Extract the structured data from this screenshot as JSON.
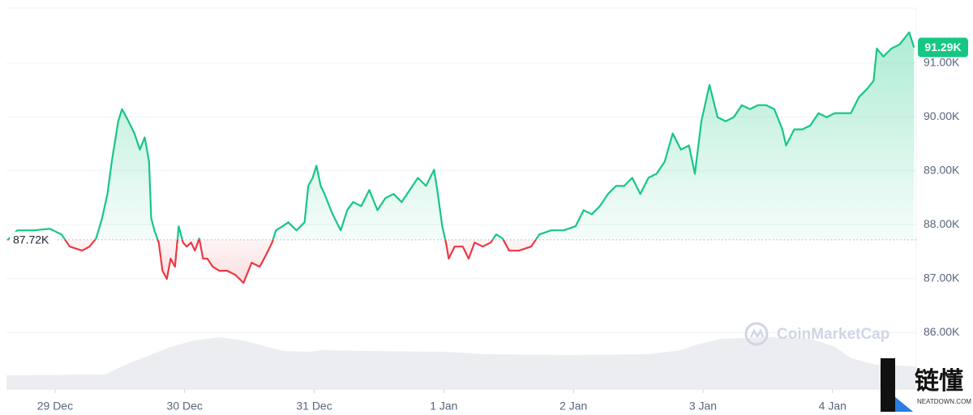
{
  "chart_data": {
    "type": "line",
    "x": [
      -8.8,
      -7.0,
      -4.0,
      -1.0,
      1.2,
      2.7,
      5.0,
      6.4,
      7.6,
      8.7,
      9.7,
      10.5,
      11.7,
      12.4,
      13.6,
      14.7,
      15.7,
      16.6,
      17.4,
      17.8,
      18.4,
      19.2,
      19.9,
      20.7,
      21.4,
      22.2,
      22.9,
      23.7,
      24.4,
      25.2,
      25.9,
      26.7,
      27.4,
      28.2,
      29.2,
      30.4,
      31.9,
      33.4,
      34.9,
      36.4,
      37.9,
      39.1,
      40.2,
      40.9,
      42.1,
      43.2,
      44.7,
      46.2,
      46.9,
      47.7,
      48.4,
      49.2,
      49.9,
      51.4,
      52.9,
      54.1,
      55.2,
      56.7,
      58.2,
      59.7,
      61.2,
      62.7,
      64.2,
      65.7,
      67.2,
      68.7,
      70.2,
      70.9,
      71.7,
      72.4,
      72.9,
      74.0,
      75.5,
      76.6,
      77.7,
      79.2,
      80.7,
      81.7,
      82.9,
      84.1,
      85.9,
      88.2,
      89.7,
      91.9,
      94.2,
      96.4,
      97.9,
      99.4,
      100.9,
      102.4,
      103.9,
      105.4,
      106.9,
      108.4,
      109.9,
      111.4,
      112.9,
      114.4,
      115.9,
      117.4,
      118.5,
      119.7,
      121.2,
      122.7,
      124.2,
      125.7,
      127.2,
      128.7,
      130.2,
      131.7,
      133.2,
      134.7,
      135.4,
      136.9,
      138.4,
      139.9,
      141.4,
      142.9,
      144.4,
      145.9,
      147.4,
      148.9,
      150.4,
      151.6,
      152.2,
      153.4,
      154.9,
      156.4,
      157.6,
      158.2,
      159.1
    ],
    "series": [
      {
        "color": "#16c784",
        "down_color": "#ea3943",
        "values": [
          87715,
          87895,
          87895,
          87925,
          87820,
          87595,
          87520,
          87595,
          87745,
          88120,
          88570,
          89170,
          89920,
          90145,
          89920,
          89695,
          89395,
          89620,
          89170,
          88120,
          87895,
          87670,
          87145,
          86995,
          87370,
          87220,
          87970,
          87670,
          87595,
          87670,
          87520,
          87745,
          87370,
          87370,
          87220,
          87145,
          87145,
          87070,
          86920,
          87295,
          87220,
          87445,
          87670,
          87895,
          87970,
          88045,
          87895,
          88045,
          88720,
          88870,
          89095,
          88720,
          88570,
          88195,
          87895,
          88270,
          88420,
          88345,
          88645,
          88270,
          88495,
          88570,
          88420,
          88645,
          88870,
          88720,
          89020,
          88570,
          87970,
          87670,
          87370,
          87595,
          87595,
          87370,
          87670,
          87595,
          87670,
          87820,
          87745,
          87520,
          87520,
          87595,
          87820,
          87895,
          87895,
          87970,
          88270,
          88195,
          88345,
          88570,
          88720,
          88720,
          88870,
          88570,
          88870,
          88945,
          89170,
          89695,
          89395,
          89470,
          88945,
          89920,
          90595,
          89995,
          89920,
          89995,
          90220,
          90145,
          90220,
          90220,
          90145,
          89770,
          89470,
          89770,
          89770,
          89845,
          90070,
          89995,
          90070,
          90070,
          90070,
          90370,
          90520,
          90670,
          91270,
          91120,
          91270,
          91345,
          91495,
          91570,
          91290
        ]
      }
    ],
    "xlim": [
      -9,
      159.5
    ],
    "xticks": [
      {
        "value": 0,
        "label": "29 Dec"
      },
      {
        "value": 24,
        "label": "30 Dec"
      },
      {
        "value": 48,
        "label": "31 Dec"
      },
      {
        "value": 72,
        "label": "1 Jan"
      },
      {
        "value": 96,
        "label": "2 Jan"
      },
      {
        "value": 120,
        "label": "3 Jan"
      },
      {
        "value": 144,
        "label": "4 Jan"
      }
    ],
    "ylim": [
      84950,
      92020
    ],
    "yticks": [
      {
        "value": 86000,
        "label": "86.00K"
      },
      {
        "value": 87000,
        "label": "87.00K"
      },
      {
        "value": 88000,
        "label": "88.00K"
      },
      {
        "value": 89000,
        "label": "89.00K"
      },
      {
        "value": 90000,
        "label": "90.00K"
      },
      {
        "value": 91000,
        "label": "91.00K"
      }
    ],
    "grid": true,
    "baseline": {
      "value": 87720,
      "label": "87.72K"
    },
    "last_price": {
      "value": 91290,
      "label": "91.29K"
    },
    "watermark": "CoinMarketCap"
  },
  "logo": {
    "title": "链懂",
    "subtitle": "NEATDOWN.COM"
  }
}
